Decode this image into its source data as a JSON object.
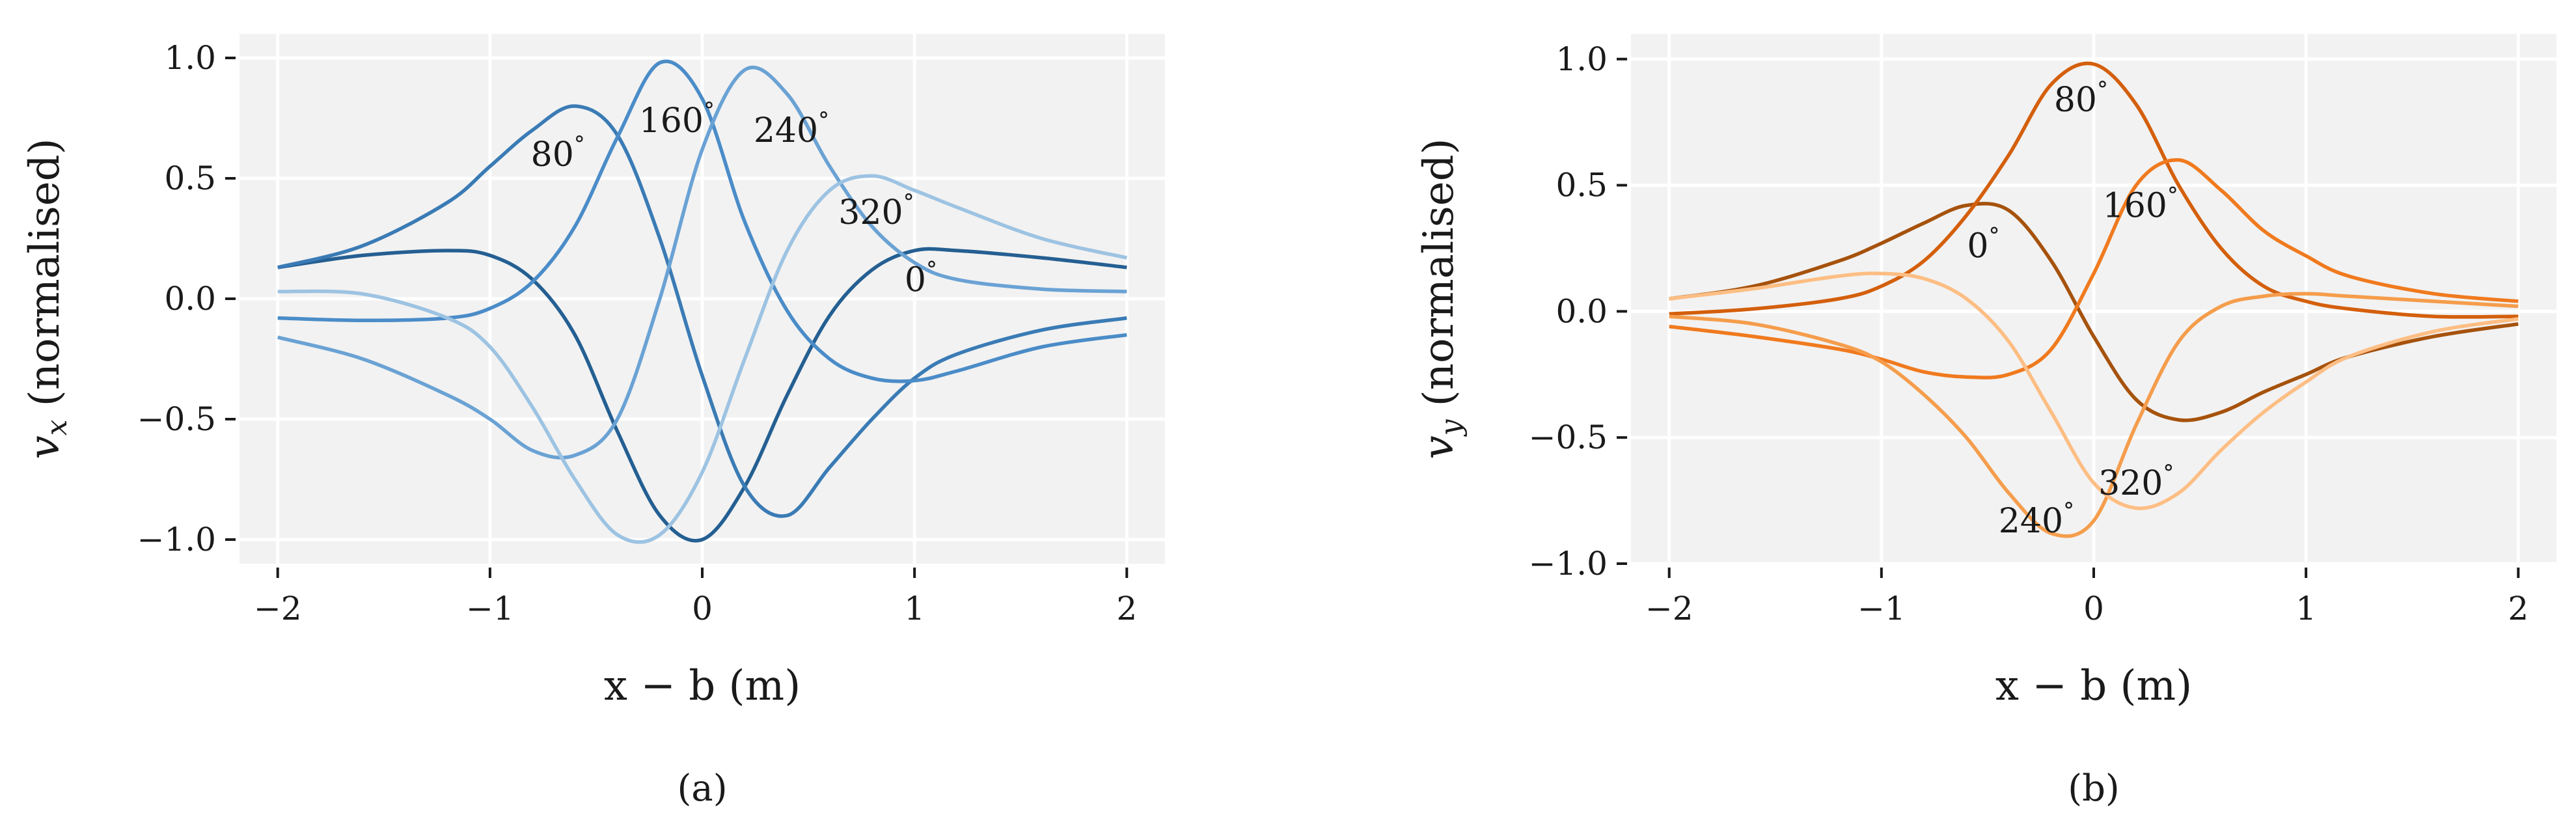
{
  "chart_data": [
    {
      "type": "line",
      "panel_label": "(a)",
      "xlabel": "x − b (m)",
      "ylabel": "v_x (normalised)",
      "ylabel_var": "v",
      "ylabel_sub": "x",
      "ylabel_rest": " (normalised)",
      "xlim": [
        -2.18,
        2.18
      ],
      "ylim": [
        -1.1,
        1.1
      ],
      "xticks": [
        -2,
        -1,
        0,
        1,
        2
      ],
      "xtick_labels": [
        "−2",
        "−1",
        "0",
        "1",
        "2"
      ],
      "yticks": [
        -1.0,
        -0.5,
        0.0,
        0.5,
        1.0
      ],
      "ytick_labels": [
        "−1.0",
        "−0.5",
        "0.0",
        "0.5",
        "1.0"
      ],
      "grid": true,
      "background": "#f2f2f2",
      "x": [
        -2.0,
        -1.6,
        -1.2,
        -1.0,
        -0.8,
        -0.6,
        -0.4,
        -0.2,
        0.0,
        0.2,
        0.4,
        0.6,
        0.8,
        1.0,
        1.2,
        1.6,
        2.0
      ],
      "series": [
        {
          "angle": "0°",
          "color": "#245f92",
          "values": [
            0.13,
            0.18,
            0.2,
            0.18,
            0.08,
            -0.15,
            -0.55,
            -0.9,
            -1.0,
            -0.78,
            -0.4,
            -0.07,
            0.12,
            0.2,
            0.2,
            0.17,
            0.13
          ]
        },
        {
          "angle": "80°",
          "color": "#3a7bb5",
          "values": [
            0.13,
            0.22,
            0.4,
            0.55,
            0.7,
            0.8,
            0.68,
            0.25,
            -0.32,
            -0.78,
            -0.9,
            -0.7,
            -0.5,
            -0.33,
            -0.23,
            -0.13,
            -0.08
          ]
        },
        {
          "angle": "160°",
          "color": "#4a8cc8",
          "values": [
            -0.08,
            -0.09,
            -0.08,
            -0.04,
            0.07,
            0.3,
            0.67,
            0.98,
            0.83,
            0.32,
            -0.05,
            -0.25,
            -0.33,
            -0.34,
            -0.3,
            -0.2,
            -0.15
          ]
        },
        {
          "angle": "240°",
          "color": "#6aa2d4",
          "values": [
            -0.16,
            -0.25,
            -0.4,
            -0.5,
            -0.63,
            -0.65,
            -0.5,
            0.0,
            0.62,
            0.95,
            0.85,
            0.55,
            0.3,
            0.15,
            0.08,
            0.04,
            0.03
          ]
        },
        {
          "angle": "320°",
          "color": "#9dc3e2",
          "values": [
            0.03,
            0.02,
            -0.08,
            -0.2,
            -0.45,
            -0.75,
            -0.98,
            -0.98,
            -0.72,
            -0.25,
            0.2,
            0.45,
            0.51,
            0.45,
            0.38,
            0.25,
            0.17
          ]
        }
      ],
      "annotations": [
        {
          "text": "80",
          "deg": "°",
          "x": -0.68,
          "y": 0.6
        },
        {
          "text": "160",
          "deg": "°",
          "x": -0.12,
          "y": 0.74
        },
        {
          "text": "240",
          "deg": "°",
          "x": 0.42,
          "y": 0.7
        },
        {
          "text": "320",
          "deg": "°",
          "x": 0.82,
          "y": 0.36
        },
        {
          "text": "0",
          "deg": "°",
          "x": 1.03,
          "y": 0.08
        }
      ]
    },
    {
      "type": "line",
      "panel_label": "(b)",
      "xlabel": "x − b (m)",
      "ylabel": "v_y (normalised)",
      "ylabel_var": "v",
      "ylabel_sub": "y",
      "ylabel_rest": " (normalised)",
      "xlim": [
        -2.18,
        2.18
      ],
      "ylim": [
        -1.0,
        1.1
      ],
      "xticks": [
        -2,
        -1,
        0,
        1,
        2
      ],
      "xtick_labels": [
        "−2",
        "−1",
        "0",
        "1",
        "2"
      ],
      "yticks": [
        -1.0,
        -0.5,
        0.0,
        0.5,
        1.0
      ],
      "ytick_labels": [
        "−1.0",
        "−0.5",
        "0.0",
        "0.5",
        "1.0"
      ],
      "grid": true,
      "background": "#f2f2f2",
      "x": [
        -2.0,
        -1.6,
        -1.2,
        -1.0,
        -0.8,
        -0.6,
        -0.4,
        -0.2,
        0.0,
        0.2,
        0.4,
        0.6,
        0.8,
        1.0,
        1.2,
        1.6,
        2.0
      ],
      "series": [
        {
          "angle": "0°",
          "color": "#a6520c",
          "values": [
            0.05,
            0.1,
            0.2,
            0.27,
            0.35,
            0.42,
            0.4,
            0.2,
            -0.1,
            -0.35,
            -0.43,
            -0.4,
            -0.32,
            -0.25,
            -0.18,
            -0.1,
            -0.05
          ]
        },
        {
          "angle": "80°",
          "color": "#d45f0c",
          "values": [
            -0.01,
            0.01,
            0.05,
            0.1,
            0.2,
            0.38,
            0.62,
            0.9,
            0.98,
            0.82,
            0.5,
            0.25,
            0.1,
            0.04,
            0.01,
            -0.02,
            -0.02
          ]
        },
        {
          "angle": "160°",
          "color": "#f07a1e",
          "values": [
            -0.06,
            -0.1,
            -0.15,
            -0.19,
            -0.24,
            -0.26,
            -0.25,
            -0.15,
            0.15,
            0.5,
            0.6,
            0.48,
            0.32,
            0.22,
            0.14,
            0.07,
            0.04
          ]
        },
        {
          "angle": "240°",
          "color": "#f59d4c",
          "values": [
            -0.02,
            -0.05,
            -0.13,
            -0.2,
            -0.33,
            -0.5,
            -0.72,
            -0.88,
            -0.83,
            -0.45,
            -0.12,
            0.02,
            0.06,
            0.07,
            0.06,
            0.04,
            0.02
          ]
        },
        {
          "angle": "320°",
          "color": "#fdbe84",
          "values": [
            0.05,
            0.09,
            0.14,
            0.15,
            0.13,
            0.05,
            -0.12,
            -0.4,
            -0.68,
            -0.78,
            -0.72,
            -0.55,
            -0.4,
            -0.28,
            -0.18,
            -0.08,
            -0.03
          ]
        }
      ],
      "annotations": [
        {
          "text": "80",
          "deg": "°",
          "x": -0.06,
          "y": 0.84
        },
        {
          "text": "0",
          "deg": "°",
          "x": -0.52,
          "y": 0.26
        },
        {
          "text": "160",
          "deg": "°",
          "x": 0.22,
          "y": 0.42
        },
        {
          "text": "320",
          "deg": "°",
          "x": 0.2,
          "y": -0.68
        },
        {
          "text": "240",
          "deg": "°",
          "x": -0.27,
          "y": -0.83
        }
      ]
    }
  ]
}
